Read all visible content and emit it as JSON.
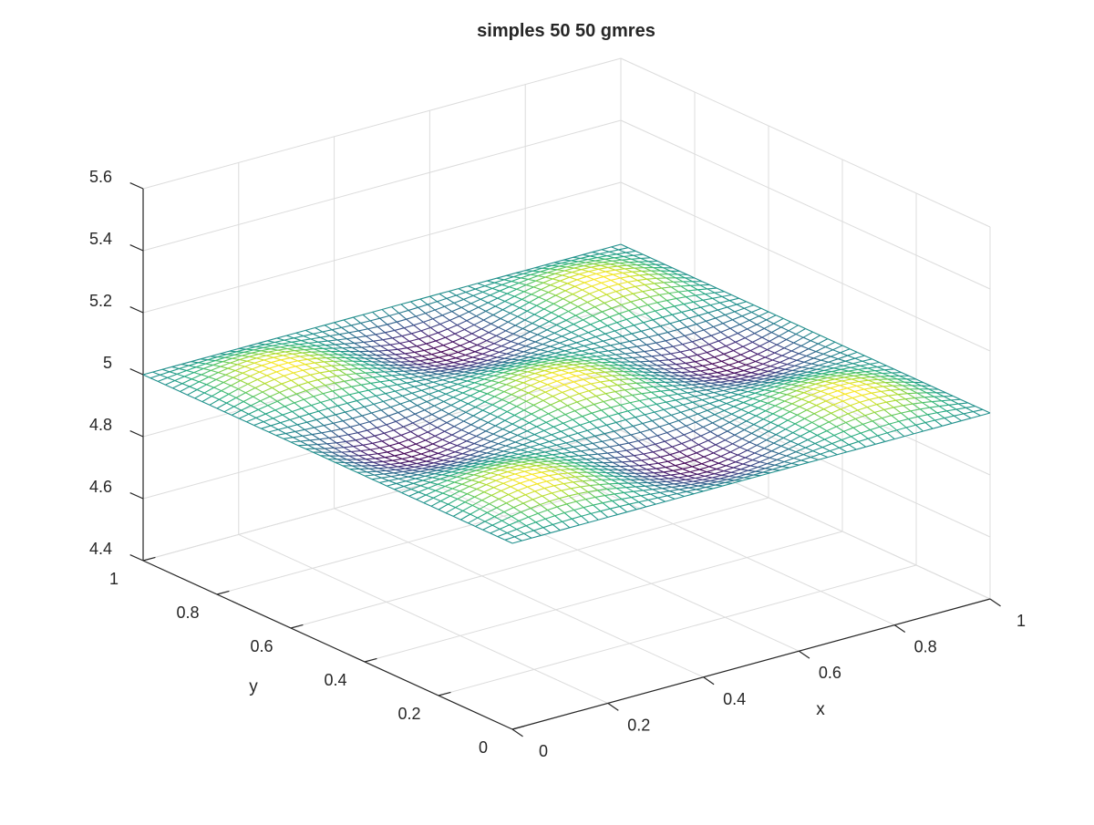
{
  "chart_data": {
    "type": "mesh",
    "title": "simples 50 50 gmres",
    "xlabel": "x",
    "ylabel": "y",
    "zlabel": "",
    "xlim": [
      0,
      1
    ],
    "ylim": [
      0,
      1
    ],
    "zlim": [
      4.4,
      5.6
    ],
    "x_ticks": [
      0,
      0.2,
      0.4,
      0.6,
      0.8,
      1
    ],
    "x_tick_labels": [
      "0",
      "0.2",
      "0.4",
      "0.6",
      "0.8",
      "1"
    ],
    "y_ticks": [
      0,
      0.2,
      0.4,
      0.6,
      0.8,
      1
    ],
    "y_tick_labels": [
      "0",
      "0.2",
      "0.4",
      "0.6",
      "0.8",
      "1"
    ],
    "z_ticks": [
      4.4,
      4.6,
      4.8,
      5.0,
      5.2,
      5.4,
      5.6
    ],
    "z_tick_labels": [
      "4.4",
      "4.6",
      "4.8",
      "5",
      "5.2",
      "5.4",
      "5.6"
    ],
    "grid": true,
    "colormap": "viridis",
    "grid_resolution": [
      50,
      50
    ],
    "surface": {
      "description": "z = 5 + 0.05*sin(3*pi*x)*sin(3*pi*y)",
      "base": 5.0,
      "amplitude": 0.05,
      "frequency_x": 3,
      "frequency_y": 3
    }
  }
}
